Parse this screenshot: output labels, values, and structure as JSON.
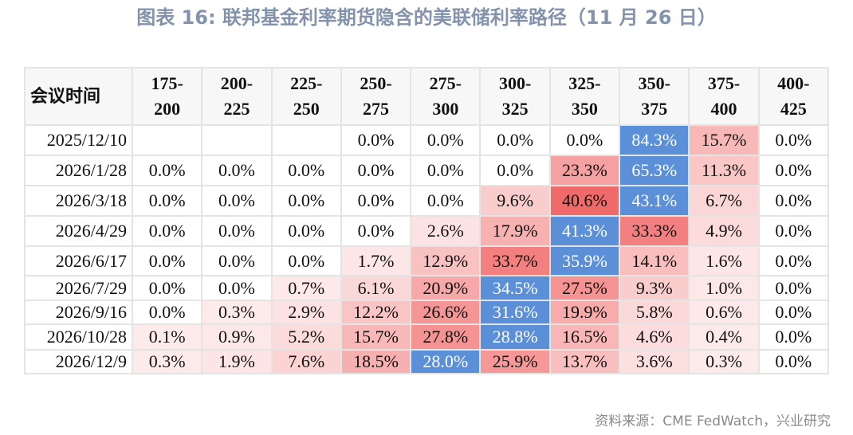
{
  "title": "图表 16: 联邦基金利率期货隐含的美联储利率路径（11 月 26 日）",
  "table": {
    "header": [
      "会议时间",
      "175-\n200",
      "200-\n225",
      "225-\n250",
      "250-\n275",
      "275-\n300",
      "300-\n325",
      "325-\n350",
      "350-\n375",
      "375-\n400",
      "400-\n425"
    ],
    "rows": [
      [
        "2025/12/10",
        null,
        null,
        null,
        "0.0%",
        "0.0%",
        "0.0%",
        "0.0%",
        "84.3%",
        "15.7%",
        "0.0%"
      ],
      [
        "2026/1/28",
        "0.0%",
        "0.0%",
        "0.0%",
        "0.0%",
        "0.0%",
        "0.0%",
        "23.3%",
        "65.3%",
        "11.3%",
        "0.0%"
      ],
      [
        "2026/3/18",
        "0.0%",
        "0.0%",
        "0.0%",
        "0.0%",
        "0.0%",
        "9.6%",
        "40.6%",
        "43.1%",
        "6.7%",
        "0.0%"
      ],
      [
        "2026/4/29",
        "0.0%",
        "0.0%",
        "0.0%",
        "0.0%",
        "2.6%",
        "17.9%",
        "41.3%",
        "33.3%",
        "4.9%",
        "0.0%"
      ],
      [
        "2026/6/17",
        "0.0%",
        "0.0%",
        "0.0%",
        "1.7%",
        "12.9%",
        "33.7%",
        "35.9%",
        "14.1%",
        "1.6%",
        "0.0%"
      ],
      [
        "2026/7/29",
        "0.0%",
        "0.0%",
        "0.7%",
        "6.1%",
        "20.9%",
        "34.5%",
        "27.5%",
        "9.3%",
        "1.0%",
        "0.0%"
      ],
      [
        "2026/9/16",
        "0.0%",
        "0.3%",
        "2.9%",
        "12.2%",
        "26.6%",
        "31.6%",
        "19.9%",
        "5.8%",
        "0.6%",
        "0.0%"
      ],
      [
        "2026/10/28",
        "0.1%",
        "0.9%",
        "5.2%",
        "15.7%",
        "27.8%",
        "28.8%",
        "16.5%",
        "4.6%",
        "0.4%",
        "0.0%"
      ],
      [
        "2026/12/9",
        "0.3%",
        "1.9%",
        "7.6%",
        "18.5%",
        "28.0%",
        "25.9%",
        "13.7%",
        "3.6%",
        "0.3%",
        "0.0%"
      ]
    ]
  },
  "source": "资料来源：CME FedWatch，兴业研究"
}
